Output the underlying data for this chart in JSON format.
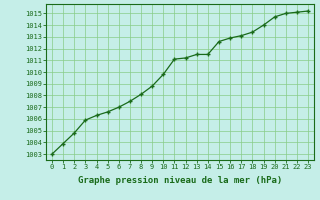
{
  "x": [
    0,
    1,
    2,
    3,
    4,
    5,
    6,
    7,
    8,
    9,
    10,
    11,
    12,
    13,
    14,
    15,
    16,
    17,
    18,
    19,
    20,
    21,
    22,
    23
  ],
  "y": [
    1003.0,
    1003.9,
    1004.8,
    1005.9,
    1006.3,
    1006.6,
    1007.0,
    1007.5,
    1008.1,
    1008.8,
    1009.8,
    1011.1,
    1011.2,
    1011.5,
    1011.5,
    1012.6,
    1012.9,
    1013.1,
    1013.4,
    1014.0,
    1014.7,
    1015.0,
    1015.1,
    1015.2
  ],
  "line_color": "#1a6b1a",
  "marker": "+",
  "marker_size": 3,
  "bg_color": "#c5eee8",
  "grid_color": "#88cc88",
  "xlabel": "Graphe pression niveau de la mer (hPa)",
  "xlabel_fontsize": 6.5,
  "xlabel_color": "#1a6b1a",
  "ylabel_ticks": [
    1003,
    1004,
    1005,
    1006,
    1007,
    1008,
    1009,
    1010,
    1011,
    1012,
    1013,
    1014,
    1015
  ],
  "ylim": [
    1002.5,
    1015.8
  ],
  "xlim": [
    -0.5,
    23.5
  ],
  "tick_fontsize": 5.0,
  "tick_color": "#1a6b1a",
  "spine_color": "#1a6b1a",
  "linewidth": 0.9,
  "figure_width": 3.2,
  "figure_height": 2.0
}
